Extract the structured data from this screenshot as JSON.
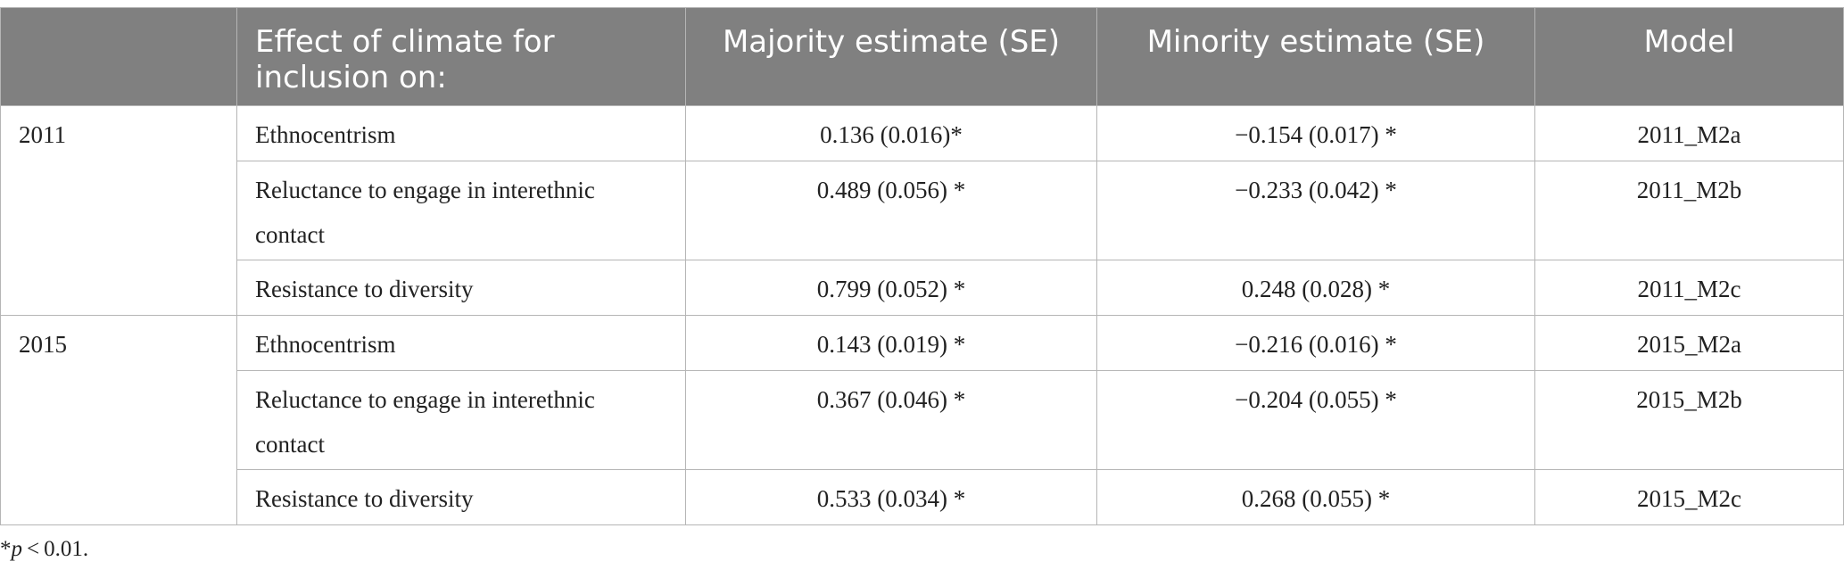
{
  "table": {
    "headers": [
      "",
      "Effect of climate for inclusion on:",
      "Majority estimate (SE)",
      "Minority estimate (SE)",
      "Model"
    ],
    "groups": [
      {
        "year": "2011",
        "rows": [
          {
            "outcome": "Ethnocentrism",
            "majority": "0.136 (0.016)*",
            "minority": "−0.154 (0.017) *",
            "model": "2011_M2a"
          },
          {
            "outcome": "Reluctance to engage in interethnic contact",
            "majority": "0.489 (0.056) *",
            "minority": "−0.233 (0.042) *",
            "model": "2011_M2b"
          },
          {
            "outcome": "Resistance to diversity",
            "majority": "0.799 (0.052) *",
            "minority": "0.248 (0.028) *",
            "model": "2011_M2c"
          }
        ]
      },
      {
        "year": "2015",
        "rows": [
          {
            "outcome": "Ethnocentrism",
            "majority": "0.143 (0.019) *",
            "minority": "−0.216 (0.016) *",
            "model": "2015_M2a"
          },
          {
            "outcome": "Reluctance to engage in interethnic contact",
            "majority": "0.367 (0.046) *",
            "minority": "−0.204 (0.055) *",
            "model": "2015_M2b"
          },
          {
            "outcome": "Resistance to diversity",
            "majority": "0.533 (0.034) *",
            "minority": "0.268 (0.055) *",
            "model": "2015_M2c"
          }
        ]
      }
    ]
  },
  "footnote": {
    "star": "*",
    "p": "p",
    "rest": " < 0.01."
  },
  "colors": {
    "header_bg": "#808080",
    "header_text": "#ffffff",
    "border": "#b5b5b5",
    "body_text": "#222222"
  }
}
